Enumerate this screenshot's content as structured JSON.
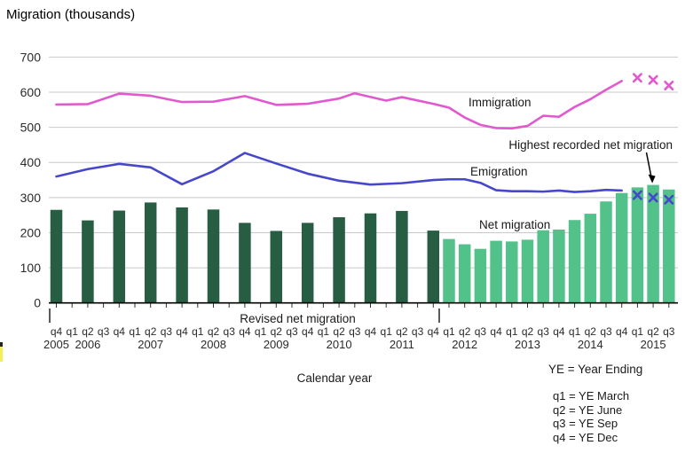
{
  "title": "Migration (thousands)",
  "labels": {
    "immigration": "Immigration",
    "emigration": "Emigration",
    "net": "Net migration",
    "revised": "Revised net migration",
    "annotation": "Highest recorded net migration",
    "calendar_year": "Calendar year"
  },
  "legend": {
    "ye": "YE = Year Ending",
    "q1": "q1 = YE March",
    "q2": "q2 = YE June",
    "q3": "q3 = YE Sep",
    "q4": "q4 = YE Dec"
  },
  "chart_data": {
    "type": "bar+line",
    "ylabel": "Migration (thousands)",
    "xlabel": "Calendar year",
    "ylim": [
      0,
      700
    ],
    "y_ticks": [
      0,
      100,
      200,
      300,
      400,
      500,
      600,
      700
    ],
    "grid": true,
    "quarter_ticks": [
      "q4",
      "q1",
      "q2",
      "q3",
      "q4",
      "q1",
      "q2",
      "q3",
      "q4",
      "q1",
      "q2",
      "q3",
      "q4",
      "q1",
      "q2",
      "q3",
      "q4",
      "q1",
      "q2",
      "q3",
      "q4",
      "q1",
      "q2",
      "q3",
      "q4",
      "q1",
      "q2",
      "q3",
      "q4",
      "q1",
      "q2",
      "q3",
      "q4",
      "q1",
      "q2",
      "q3",
      "q4",
      "q1",
      "q2",
      "q3"
    ],
    "year_labels": [
      {
        "label": "2005",
        "tick": 0
      },
      {
        "label": "2006",
        "tick": 2
      },
      {
        "label": "2007",
        "tick": 6
      },
      {
        "label": "2008",
        "tick": 10
      },
      {
        "label": "2009",
        "tick": 14
      },
      {
        "label": "2010",
        "tick": 18
      },
      {
        "label": "2011",
        "tick": 22
      },
      {
        "label": "2012",
        "tick": 26
      },
      {
        "label": "2013",
        "tick": 30
      },
      {
        "label": "2014",
        "tick": 34
      },
      {
        "label": "2015",
        "tick": 38
      }
    ],
    "series": [
      {
        "name": "Immigration",
        "kind": "line",
        "color": "#e259cf",
        "points": [
          [
            0,
            565
          ],
          [
            2,
            566
          ],
          [
            4,
            596
          ],
          [
            6,
            590
          ],
          [
            8,
            572
          ],
          [
            10,
            573
          ],
          [
            12,
            589
          ],
          [
            14,
            564
          ],
          [
            16,
            567
          ],
          [
            18,
            582
          ],
          [
            19,
            597
          ],
          [
            21,
            576
          ],
          [
            22,
            586
          ],
          [
            24,
            567
          ],
          [
            25,
            556
          ],
          [
            26,
            528
          ],
          [
            27,
            507
          ],
          [
            28,
            498
          ],
          [
            29,
            497
          ],
          [
            30,
            504
          ],
          [
            31,
            533
          ],
          [
            32,
            530
          ],
          [
            33,
            558
          ],
          [
            34,
            580
          ],
          [
            35,
            607
          ],
          [
            36,
            632
          ]
        ],
        "provisional_markers": [
          [
            37,
            641
          ],
          [
            38,
            635
          ],
          [
            39,
            619
          ]
        ]
      },
      {
        "name": "Emigration",
        "kind": "line",
        "color": "#4747cb",
        "points": [
          [
            0,
            360
          ],
          [
            2,
            381
          ],
          [
            4,
            396
          ],
          [
            6,
            386
          ],
          [
            8,
            338
          ],
          [
            10,
            375
          ],
          [
            12,
            427
          ],
          [
            14,
            397
          ],
          [
            16,
            368
          ],
          [
            18,
            348
          ],
          [
            20,
            337
          ],
          [
            22,
            341
          ],
          [
            24,
            350
          ],
          [
            25,
            352
          ],
          [
            26,
            352
          ],
          [
            27,
            342
          ],
          [
            28,
            321
          ],
          [
            29,
            318
          ],
          [
            30,
            318
          ],
          [
            31,
            317
          ],
          [
            32,
            320
          ],
          [
            33,
            316
          ],
          [
            34,
            318
          ],
          [
            35,
            322
          ],
          [
            36,
            320
          ]
        ],
        "provisional_markers": [
          [
            37,
            307
          ],
          [
            38,
            300
          ],
          [
            39,
            294
          ]
        ]
      },
      {
        "name": "Revised net migration",
        "kind": "bar",
        "color": "#275d43",
        "points": [
          [
            0,
            265
          ],
          [
            2,
            235
          ],
          [
            4,
            263
          ],
          [
            6,
            286
          ],
          [
            8,
            272
          ],
          [
            10,
            266
          ],
          [
            12,
            228
          ],
          [
            14,
            205
          ],
          [
            16,
            228
          ],
          [
            18,
            244
          ],
          [
            20,
            255
          ],
          [
            22,
            262
          ],
          [
            24,
            206
          ]
        ]
      },
      {
        "name": "Net migration",
        "kind": "bar",
        "color": "#52c18a",
        "points": [
          [
            25,
            182
          ],
          [
            26,
            167
          ],
          [
            27,
            154
          ],
          [
            28,
            177
          ],
          [
            29,
            175
          ],
          [
            30,
            180
          ],
          [
            31,
            207
          ],
          [
            32,
            209
          ],
          [
            33,
            236
          ],
          [
            34,
            254
          ],
          [
            35,
            289
          ],
          [
            36,
            313
          ],
          [
            37,
            329
          ],
          [
            38,
            336
          ],
          [
            39,
            323
          ]
        ]
      }
    ],
    "annotation": {
      "text": "Highest recorded net migration",
      "points_to": {
        "tick": 38,
        "value": 336
      }
    },
    "colors": {
      "grid": "#c9c9c9",
      "axis": "#000000",
      "tick_text": "#2b2b2b"
    }
  }
}
